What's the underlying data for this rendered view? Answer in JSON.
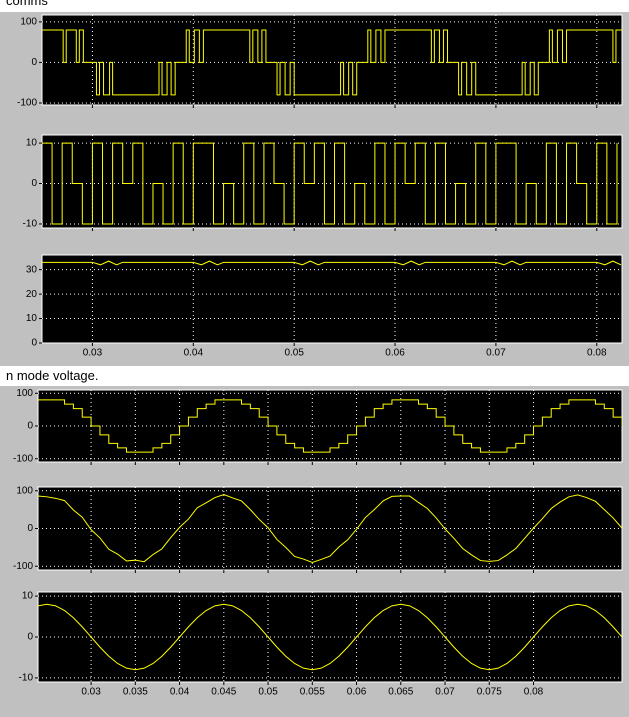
{
  "captions": [
    "comms",
    "n mode voltage."
  ],
  "chart_data": [
    {
      "type": "line",
      "step": true,
      "color": "#ffff00",
      "grid": true,
      "xtick_labels": false,
      "xlim": [
        0.025,
        0.0825
      ],
      "ylim": [
        -105,
        117
      ],
      "yticks": [
        -100,
        0,
        100
      ],
      "xticks": [
        0.03,
        0.04,
        0.05,
        0.06,
        0.07,
        0.08
      ],
      "x": [
        0.025,
        0.0271,
        0.0274,
        0.0284,
        0.0287,
        0.0291,
        0.0304,
        0.0307,
        0.0311,
        0.0317,
        0.032,
        0.0366,
        0.0369,
        0.0374,
        0.0378,
        0.0382,
        0.0393,
        0.0396,
        0.0401,
        0.0406,
        0.041,
        0.0456,
        0.0459,
        0.0464,
        0.0468,
        0.0472,
        0.0483,
        0.0486,
        0.0491,
        0.0496,
        0.05,
        0.0546,
        0.0549,
        0.0554,
        0.0558,
        0.0562,
        0.0573,
        0.0576,
        0.0581,
        0.0586,
        0.059,
        0.0636,
        0.0639,
        0.0644,
        0.0648,
        0.0652,
        0.0663,
        0.0666,
        0.0671,
        0.0676,
        0.068,
        0.0726,
        0.0729,
        0.0734,
        0.0738,
        0.0742,
        0.0753,
        0.0756,
        0.0761,
        0.0766,
        0.077,
        0.0816,
        0.0819,
        0.0825
      ],
      "values": [
        80,
        0,
        80,
        0,
        80,
        0,
        -80,
        0,
        -80,
        0,
        -80,
        0,
        -80,
        0,
        -80,
        0,
        80,
        0,
        80,
        0,
        80,
        0,
        80,
        0,
        80,
        0,
        -80,
        0,
        -80,
        0,
        -80,
        0,
        -80,
        0,
        -80,
        0,
        80,
        0,
        80,
        0,
        80,
        0,
        80,
        0,
        80,
        0,
        -80,
        0,
        -80,
        0,
        -80,
        0,
        -80,
        0,
        -80,
        0,
        80,
        0,
        80,
        0,
        80,
        0,
        80,
        80
      ]
    },
    {
      "type": "line",
      "step": true,
      "color": "#ffff00",
      "grid": true,
      "xtick_labels": false,
      "xlim": [
        0.025,
        0.0825
      ],
      "ylim": [
        -11,
        12
      ],
      "yticks": [
        -10,
        0,
        10
      ],
      "xticks": [
        0.03,
        0.04,
        0.05,
        0.06,
        0.07,
        0.08
      ],
      "x": [
        0.025,
        0.026,
        0.027,
        0.028,
        0.029,
        0.03,
        0.031,
        0.032,
        0.033,
        0.034,
        0.035,
        0.036,
        0.037,
        0.038,
        0.039,
        0.04,
        0.041,
        0.042,
        0.043,
        0.044,
        0.045,
        0.046,
        0.047,
        0.048,
        0.049,
        0.05,
        0.051,
        0.052,
        0.053,
        0.054,
        0.055,
        0.056,
        0.057,
        0.058,
        0.059,
        0.06,
        0.061,
        0.062,
        0.063,
        0.064,
        0.065,
        0.066,
        0.067,
        0.068,
        0.069,
        0.07,
        0.071,
        0.072,
        0.073,
        0.074,
        0.075,
        0.076,
        0.077,
        0.078,
        0.079,
        0.08,
        0.081,
        0.082
      ],
      "values": [
        10,
        -10,
        10,
        0,
        -10,
        10,
        -10,
        10,
        0,
        10,
        -10,
        0,
        -10,
        10,
        -10,
        10,
        10,
        -10,
        0,
        -10,
        10,
        -10,
        10,
        0,
        -10,
        10,
        0,
        10,
        -10,
        10,
        -10,
        0,
        -10,
        10,
        -10,
        10,
        0,
        10,
        -10,
        10,
        -10,
        0,
        -10,
        10,
        -10,
        10,
        10,
        -10,
        0,
        -10,
        10,
        -10,
        10,
        0,
        -10,
        10,
        -10,
        10
      ]
    },
    {
      "type": "line",
      "step": false,
      "color": "#ffff00",
      "grid": true,
      "xtick_labels": true,
      "xlim": [
        0.025,
        0.0825
      ],
      "ylim": [
        0,
        36
      ],
      "yticks": [
        0,
        10,
        20,
        30
      ],
      "xticks": [
        0.03,
        0.04,
        0.05,
        0.06,
        0.07,
        0.08
      ],
      "x": [
        0.025,
        0.03,
        0.0308,
        0.0316,
        0.0324,
        0.033,
        0.04,
        0.0408,
        0.0416,
        0.0424,
        0.043,
        0.05,
        0.0508,
        0.0516,
        0.0524,
        0.053,
        0.06,
        0.0608,
        0.0616,
        0.0624,
        0.063,
        0.07,
        0.0708,
        0.0716,
        0.0724,
        0.073,
        0.08,
        0.0808,
        0.0816,
        0.0824
      ],
      "values": [
        33,
        33,
        32,
        33.5,
        32,
        33,
        33,
        32,
        33.5,
        32,
        33,
        33,
        32,
        33.5,
        32,
        33,
        33,
        32,
        33.5,
        32,
        33,
        33,
        32,
        33.5,
        32,
        33,
        33,
        32,
        33.5,
        32
      ]
    },
    {
      "type": "line",
      "step": true,
      "color": "#ffff00",
      "grid": true,
      "xtick_labels": false,
      "xlim": [
        0.024,
        0.09
      ],
      "ylim": [
        -110,
        110
      ],
      "yticks": [
        -100,
        0,
        100
      ],
      "xticks": [
        0.03,
        0.035,
        0.04,
        0.045,
        0.05,
        0.055,
        0.06,
        0.065,
        0.07,
        0.075,
        0.08
      ],
      "x": [
        0.024,
        0.025,
        0.026,
        0.027,
        0.028,
        0.029,
        0.03,
        0.031,
        0.032,
        0.033,
        0.034,
        0.035,
        0.036,
        0.037,
        0.038,
        0.039,
        0.04,
        0.041,
        0.042,
        0.043,
        0.044,
        0.045,
        0.046,
        0.047,
        0.048,
        0.049,
        0.05,
        0.051,
        0.052,
        0.053,
        0.054,
        0.055,
        0.056,
        0.057,
        0.058,
        0.059,
        0.06,
        0.061,
        0.062,
        0.063,
        0.064,
        0.065,
        0.066,
        0.067,
        0.068,
        0.069,
        0.07,
        0.071,
        0.072,
        0.073,
        0.074,
        0.075,
        0.076,
        0.077,
        0.078,
        0.079,
        0.08,
        0.081,
        0.082,
        0.083,
        0.084,
        0.085,
        0.086,
        0.087,
        0.088,
        0.089,
        0.09
      ],
      "values": [
        80,
        80,
        80,
        67,
        53,
        27,
        0,
        -27,
        -53,
        -67,
        -80,
        -80,
        -80,
        -67,
        -53,
        -27,
        0,
        27,
        53,
        67,
        80,
        80,
        80,
        67,
        53,
        27,
        0,
        -27,
        -53,
        -67,
        -80,
        -80,
        -80,
        -67,
        -53,
        -27,
        0,
        27,
        53,
        67,
        80,
        80,
        80,
        67,
        53,
        27,
        0,
        -27,
        -53,
        -67,
        -80,
        -80,
        -80,
        -67,
        -53,
        -27,
        0,
        27,
        53,
        67,
        80,
        80,
        80,
        67,
        53,
        27,
        0
      ]
    },
    {
      "type": "line",
      "step": false,
      "color": "#ffff00",
      "grid": true,
      "xtick_labels": false,
      "xlim": [
        0.024,
        0.09
      ],
      "ylim": [
        -110,
        110
      ],
      "yticks": [
        -100,
        0,
        100
      ],
      "xticks": [
        0.03,
        0.035,
        0.04,
        0.045,
        0.05,
        0.055,
        0.06,
        0.065,
        0.07,
        0.075,
        0.08
      ],
      "x": [
        0.024,
        0.025,
        0.026,
        0.027,
        0.028,
        0.029,
        0.03,
        0.031,
        0.032,
        0.033,
        0.034,
        0.035,
        0.036,
        0.037,
        0.038,
        0.039,
        0.04,
        0.041,
        0.042,
        0.043,
        0.044,
        0.045,
        0.046,
        0.047,
        0.048,
        0.049,
        0.05,
        0.051,
        0.052,
        0.053,
        0.054,
        0.055,
        0.056,
        0.057,
        0.058,
        0.059,
        0.06,
        0.061,
        0.062,
        0.063,
        0.064,
        0.065,
        0.066,
        0.067,
        0.068,
        0.069,
        0.07,
        0.071,
        0.072,
        0.073,
        0.074,
        0.075,
        0.076,
        0.077,
        0.078,
        0.079,
        0.08,
        0.081,
        0.082,
        0.083,
        0.084,
        0.085,
        0.086,
        0.087,
        0.088,
        0.089,
        0.09
      ],
      "values": [
        86,
        84,
        80,
        74,
        49,
        30,
        -3,
        -25,
        -55,
        -68,
        -86,
        -84,
        -88,
        -69,
        -54,
        -24,
        3,
        25,
        55,
        68,
        82,
        90,
        81,
        73,
        50,
        24,
        2,
        -29,
        -50,
        -74,
        -81,
        -90,
        -82,
        -73,
        -49,
        -30,
        -2,
        29,
        50,
        73,
        85,
        86,
        86,
        69,
        53,
        28,
        -1,
        -26,
        -53,
        -70,
        -85,
        -87,
        -85,
        -70,
        -53,
        -26,
        1,
        26,
        53,
        70,
        84,
        89,
        82,
        72,
        50,
        28,
        1
      ]
    },
    {
      "type": "line",
      "step": false,
      "color": "#ffff00",
      "grid": true,
      "xtick_labels": true,
      "xlim": [
        0.024,
        0.09
      ],
      "ylim": [
        -11,
        11
      ],
      "yticks": [
        -10,
        0,
        10
      ],
      "xticks": [
        0.03,
        0.035,
        0.04,
        0.045,
        0.05,
        0.055,
        0.06,
        0.065,
        0.07,
        0.075,
        0.08
      ],
      "x": [
        0.024,
        0.025,
        0.026,
        0.027,
        0.028,
        0.029,
        0.03,
        0.031,
        0.032,
        0.033,
        0.034,
        0.035,
        0.036,
        0.037,
        0.038,
        0.039,
        0.04,
        0.041,
        0.042,
        0.043,
        0.044,
        0.045,
        0.046,
        0.047,
        0.048,
        0.049,
        0.05,
        0.051,
        0.052,
        0.053,
        0.054,
        0.055,
        0.056,
        0.057,
        0.058,
        0.059,
        0.06,
        0.061,
        0.062,
        0.063,
        0.064,
        0.065,
        0.066,
        0.067,
        0.068,
        0.069,
        0.07,
        0.071,
        0.072,
        0.073,
        0.074,
        0.075,
        0.076,
        0.077,
        0.078,
        0.079,
        0.08,
        0.081,
        0.082,
        0.083,
        0.084,
        0.085,
        0.086,
        0.087,
        0.088,
        0.089,
        0.09
      ],
      "values": [
        7.61,
        8,
        7.61,
        6.47,
        4.7,
        2.47,
        0,
        -2.47,
        -4.7,
        -6.47,
        -7.61,
        -8,
        -7.61,
        -6.47,
        -4.7,
        -2.47,
        0,
        2.47,
        4.7,
        6.47,
        7.61,
        8,
        7.61,
        6.47,
        4.7,
        2.47,
        0,
        -2.47,
        -4.7,
        -6.47,
        -7.61,
        -8,
        -7.61,
        -6.47,
        -4.7,
        -2.47,
        0,
        2.47,
        4.7,
        6.47,
        7.61,
        8,
        7.61,
        6.47,
        4.7,
        2.47,
        0,
        -2.47,
        -4.7,
        -6.47,
        -7.61,
        -8,
        -7.61,
        -6.47,
        -4.7,
        -2.47,
        0,
        2.47,
        4.7,
        6.47,
        7.61,
        8,
        7.61,
        6.47,
        4.7,
        2.47,
        0
      ]
    }
  ]
}
